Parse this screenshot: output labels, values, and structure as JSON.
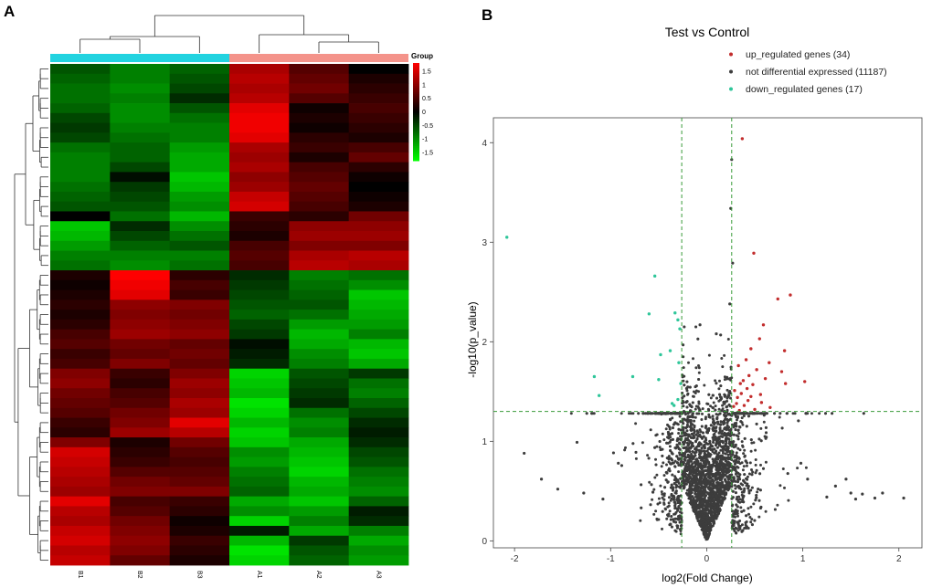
{
  "panels": {
    "a_label": "A",
    "b_label": "B"
  },
  "chart_data": [
    {
      "type": "heatmap",
      "title": "",
      "columns": [
        "B1",
        "B2",
        "B3",
        "A1",
        "A2",
        "A3"
      ],
      "group_legend_title": "Group",
      "groups": [
        {
          "name": "B",
          "color": "#22d3e0",
          "columns": [
            "B1",
            "B2",
            "B3"
          ]
        },
        {
          "name": "A",
          "color": "#f4938a",
          "columns": [
            "A1",
            "A2",
            "A3"
          ]
        }
      ],
      "color_scale": {
        "ticks": [
          "1.5",
          "1",
          "0.5",
          "0",
          "-0.5",
          "-1",
          "-1.5"
        ],
        "tick_values": [
          1.5,
          1,
          0.5,
          0,
          -0.5,
          -1,
          -1.5
        ],
        "range": [
          -1.8,
          1.8
        ],
        "high_color": "#ff0000",
        "mid_color": "#000000",
        "low_color": "#00ff00"
      },
      "row_count": 51,
      "values": [
        [
          -0.6,
          -0.9,
          -0.7,
          1.2,
          0.6,
          0.0
        ],
        [
          -0.7,
          -0.9,
          -0.6,
          1.3,
          0.7,
          0.2
        ],
        [
          -0.8,
          -1.0,
          -0.5,
          1.2,
          0.8,
          0.3
        ],
        [
          -0.8,
          -0.9,
          -0.3,
          1.3,
          0.6,
          0.4
        ],
        [
          -0.7,
          -1.0,
          -0.6,
          1.6,
          0.1,
          0.5
        ],
        [
          -0.5,
          -1.0,
          -0.8,
          1.7,
          0.2,
          0.4
        ],
        [
          -0.4,
          -0.9,
          -0.9,
          1.7,
          0.1,
          0.3
        ],
        [
          -0.5,
          -0.8,
          -0.9,
          1.6,
          0.3,
          0.2
        ],
        [
          -0.8,
          -0.7,
          -1.1,
          1.2,
          0.4,
          0.5
        ],
        [
          -0.9,
          -0.7,
          -1.2,
          1.1,
          0.2,
          0.7
        ],
        [
          -0.9,
          -0.5,
          -1.2,
          1.2,
          0.5,
          0.3
        ],
        [
          -0.9,
          -0.1,
          -1.4,
          1.0,
          0.6,
          0.1
        ],
        [
          -0.8,
          -0.4,
          -1.3,
          1.1,
          0.7,
          0.0
        ],
        [
          -0.7,
          -0.5,
          -1.1,
          1.4,
          0.6,
          0.1
        ],
        [
          -0.6,
          -0.6,
          -1.0,
          1.5,
          0.5,
          0.2
        ],
        [
          0.0,
          -0.8,
          -1.3,
          0.4,
          0.3,
          0.8
        ],
        [
          -1.4,
          -0.3,
          -1.0,
          0.3,
          1.0,
          1.0
        ],
        [
          -1.3,
          -0.5,
          -0.8,
          0.2,
          1.1,
          1.1
        ],
        [
          -1.1,
          -0.7,
          -0.6,
          0.5,
          0.9,
          0.9
        ],
        [
          -0.9,
          -0.9,
          -0.9,
          0.6,
          1.2,
          1.3
        ],
        [
          -0.8,
          -1.0,
          -0.8,
          0.5,
          1.3,
          1.2
        ],
        [
          0.2,
          1.8,
          0.3,
          -0.3,
          -0.9,
          -0.8
        ],
        [
          0.1,
          1.7,
          0.5,
          -0.4,
          -0.8,
          -1.0
        ],
        [
          0.2,
          1.6,
          0.4,
          -0.5,
          -0.7,
          -1.4
        ],
        [
          0.3,
          1.0,
          0.9,
          -0.6,
          -0.6,
          -1.3
        ],
        [
          0.2,
          0.9,
          0.8,
          -0.7,
          -0.8,
          -1.2
        ],
        [
          0.3,
          1.0,
          0.9,
          -0.5,
          -1.1,
          -1.1
        ],
        [
          0.5,
          1.1,
          1.0,
          -0.4,
          -1.3,
          -0.9
        ],
        [
          0.6,
          0.8,
          0.7,
          -0.1,
          -1.2,
          -1.3
        ],
        [
          0.4,
          0.7,
          0.8,
          -0.2,
          -1.0,
          -1.4
        ],
        [
          0.5,
          0.9,
          0.7,
          -0.3,
          -0.9,
          -1.2
        ],
        [
          0.9,
          0.4,
          0.9,
          -1.5,
          -0.6,
          -0.4
        ],
        [
          1.0,
          0.3,
          1.1,
          -1.4,
          -0.5,
          -0.8
        ],
        [
          0.8,
          0.5,
          1.0,
          -1.3,
          -0.4,
          -0.9
        ],
        [
          0.7,
          0.6,
          1.2,
          -1.6,
          -0.3,
          -0.7
        ],
        [
          0.6,
          0.8,
          1.1,
          -1.5,
          -0.8,
          -0.5
        ],
        [
          0.4,
          0.9,
          1.6,
          -1.3,
          -1.0,
          -0.3
        ],
        [
          0.3,
          1.1,
          1.3,
          -1.5,
          -0.9,
          -0.2
        ],
        [
          0.9,
          0.2,
          0.8,
          -1.4,
          -1.2,
          -0.3
        ],
        [
          1.5,
          0.3,
          0.6,
          -1.0,
          -1.3,
          -0.5
        ],
        [
          1.4,
          0.4,
          0.5,
          -1.1,
          -1.4,
          -0.6
        ],
        [
          1.3,
          0.6,
          0.6,
          -0.9,
          -1.5,
          -0.8
        ],
        [
          1.2,
          0.8,
          0.7,
          -0.8,
          -1.3,
          -0.9
        ],
        [
          1.1,
          0.9,
          0.9,
          -0.7,
          -1.2,
          -1.0
        ],
        [
          1.6,
          0.5,
          0.4,
          -1.2,
          -1.4,
          -0.7
        ],
        [
          1.3,
          0.6,
          0.3,
          -1.0,
          -1.1,
          -0.2
        ],
        [
          1.2,
          0.8,
          0.1,
          -1.5,
          -0.9,
          -0.3
        ],
        [
          1.4,
          0.9,
          0.2,
          -0.2,
          -1.2,
          -0.9
        ],
        [
          1.5,
          1.0,
          0.4,
          -1.3,
          -0.4,
          -1.2
        ],
        [
          1.3,
          0.9,
          0.3,
          -1.6,
          -0.6,
          -1.0
        ],
        [
          1.4,
          0.7,
          0.2,
          -1.5,
          -0.7,
          -1.1
        ]
      ]
    },
    {
      "type": "scatter",
      "title": "Test vs Control",
      "xlabel": "log2(Fold Change)",
      "ylabel": "-log10(p_value)",
      "xlim": [
        -2.22,
        2.24
      ],
      "ylim": [
        -0.07,
        4.25
      ],
      "xticks": [
        -2,
        -1,
        0,
        1,
        2
      ],
      "yticks": [
        0,
        1,
        2,
        3,
        4
      ],
      "fc_threshold_lines": [
        -0.26,
        0.26
      ],
      "p_threshold_line": 1.3,
      "legend": [
        {
          "label": "up_regulated genes (34)",
          "color": "#c22d2d"
        },
        {
          "label": "not differential expressed (11187)",
          "color": "#3d3d3d"
        },
        {
          "label": "down_regulated genes (17)",
          "color": "#2fc69a"
        }
      ],
      "colors": {
        "up": "#c22d2d",
        "ns": "#3d3d3d",
        "down": "#2fc69a",
        "threshold": "#3a9b3a"
      },
      "background_cloud_count": 3500,
      "up": [
        [
          0.37,
          4.04
        ],
        [
          0.49,
          2.89
        ],
        [
          0.87,
          2.47
        ],
        [
          0.74,
          2.43
        ],
        [
          0.59,
          2.17
        ],
        [
          0.55,
          2.03
        ],
        [
          0.81,
          1.91
        ],
        [
          0.46,
          1.93
        ],
        [
          0.65,
          1.79
        ],
        [
          0.41,
          1.82
        ],
        [
          0.33,
          1.76
        ],
        [
          0.52,
          1.72
        ],
        [
          0.78,
          1.7
        ],
        [
          0.44,
          1.66
        ],
        [
          0.61,
          1.63
        ],
        [
          0.38,
          1.61
        ],
        [
          0.35,
          1.58
        ],
        [
          1.02,
          1.6
        ],
        [
          0.48,
          1.57
        ],
        [
          0.82,
          1.58
        ],
        [
          0.42,
          1.53
        ],
        [
          0.29,
          1.51
        ],
        [
          0.36,
          1.48
        ],
        [
          0.56,
          1.47
        ],
        [
          0.32,
          1.44
        ],
        [
          0.43,
          1.41
        ],
        [
          0.31,
          1.38
        ],
        [
          0.39,
          1.36
        ],
        [
          0.66,
          1.34
        ],
        [
          0.5,
          1.32
        ],
        [
          0.28,
          1.35
        ],
        [
          0.34,
          1.31
        ],
        [
          0.57,
          1.39
        ],
        [
          0.46,
          1.45
        ]
      ],
      "down": [
        [
          -2.08,
          3.05
        ],
        [
          -0.54,
          2.66
        ],
        [
          -0.33,
          2.29
        ],
        [
          -0.6,
          2.28
        ],
        [
          -0.3,
          2.22
        ],
        [
          -0.28,
          2.13
        ],
        [
          -0.38,
          1.91
        ],
        [
          -0.48,
          1.87
        ],
        [
          -0.29,
          1.79
        ],
        [
          -1.17,
          1.65
        ],
        [
          -0.77,
          1.65
        ],
        [
          -0.5,
          1.62
        ],
        [
          -0.27,
          1.58
        ],
        [
          -1.12,
          1.46
        ],
        [
          -0.36,
          1.38
        ],
        [
          -0.34,
          1.36
        ],
        [
          -0.3,
          1.42
        ]
      ],
      "ns_highlight": [
        [
          0.26,
          3.83
        ],
        [
          0.25,
          3.34
        ],
        [
          0.27,
          2.79
        ],
        [
          0.24,
          2.38
        ],
        [
          -0.07,
          2.17
        ],
        [
          0.1,
          2.08
        ]
      ]
    }
  ]
}
